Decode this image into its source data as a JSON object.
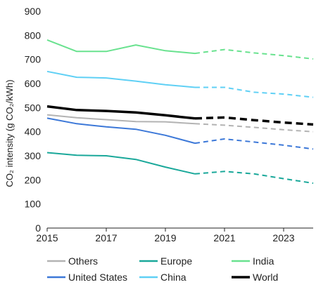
{
  "chart_data": {
    "type": "line",
    "title": "",
    "xlabel": "",
    "ylabel": "CO₂ intensity (g CO₂/kWh)",
    "xlim": [
      2015,
      2024
    ],
    "ylim": [
      0,
      900
    ],
    "x_ticks": [
      "2015",
      "2017",
      "2019",
      "2021",
      "2023"
    ],
    "y_ticks": [
      "0",
      "100",
      "200",
      "300",
      "400",
      "500",
      "600",
      "700",
      "800",
      "900"
    ],
    "grid": false,
    "legend_position": "bottom",
    "projection_start": 2020,
    "line_style_note": "solid lines for 2015–2020, dashed lines for 2020–2024",
    "x": [
      2015,
      2016,
      2017,
      2018,
      2019,
      2020,
      2021,
      2022,
      2023,
      2024
    ],
    "series": [
      {
        "name": "Others",
        "color": "#b3b3b3",
        "values": [
          470,
          458,
          450,
          442,
          441,
          433,
          427,
          418,
          408,
          400
        ]
      },
      {
        "name": "Europe",
        "color": "#1aa89a",
        "values": [
          313,
          302,
          300,
          285,
          253,
          225,
          235,
          225,
          205,
          186
        ]
      },
      {
        "name": "India",
        "color": "#69e28f",
        "values": [
          781,
          733,
          733,
          760,
          736,
          725,
          741,
          727,
          716,
          702
        ]
      },
      {
        "name": "United States",
        "color": "#3c78d8",
        "values": [
          456,
          433,
          420,
          410,
          385,
          352,
          370,
          357,
          344,
          328
        ]
      },
      {
        "name": "China",
        "color": "#5fd0f5",
        "values": [
          650,
          626,
          623,
          610,
          595,
          584,
          584,
          564,
          556,
          543
        ]
      },
      {
        "name": "World",
        "color": "#000000",
        "values": [
          505,
          490,
          486,
          480,
          468,
          455,
          459,
          448,
          438,
          430
        ]
      }
    ]
  }
}
